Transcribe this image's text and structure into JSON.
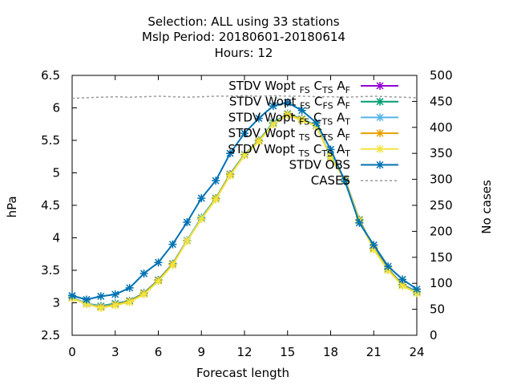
{
  "chart_data": {
    "type": "line",
    "title_lines": [
      "Selection: ALL using    33 stations",
      "Mslp   Period: 20180601-20180614",
      "Hours:  12"
    ],
    "xlabel": "Forecast length",
    "ylabel": "hPa",
    "y2label": "No cases",
    "xlim": [
      0,
      24
    ],
    "ylim": [
      2.5,
      6.5
    ],
    "y2lim": [
      0,
      500
    ],
    "xticks": [
      0,
      3,
      6,
      9,
      12,
      15,
      18,
      21,
      24
    ],
    "yticks": [
      2.5,
      3,
      3.5,
      4,
      4.5,
      5,
      5.5,
      6,
      6.5
    ],
    "y2ticks": [
      0,
      50,
      100,
      150,
      200,
      250,
      300,
      350,
      400,
      450,
      500
    ],
    "grid": false,
    "legend_position": "top-right",
    "x": [
      0,
      1,
      2,
      3,
      4,
      5,
      6,
      7,
      8,
      9,
      10,
      11,
      12,
      13,
      14,
      15,
      16,
      17,
      18,
      19,
      20,
      21,
      22,
      23,
      24
    ],
    "series": [
      {
        "name": "STDV Wopt_FS C_TS A_F",
        "color": "#9400d3",
        "axis": "y1",
        "values": [
          3.08,
          2.99,
          2.94,
          2.98,
          3.03,
          3.15,
          3.35,
          3.6,
          3.96,
          4.3,
          4.6,
          4.98,
          5.28,
          5.49,
          5.76,
          5.9,
          5.82,
          5.73,
          5.25,
          4.9,
          4.27,
          3.84,
          3.52,
          3.28,
          3.17
        ]
      },
      {
        "name": "STDV Wopt_FS C_FS A_F",
        "color": "#009e73",
        "axis": "y1",
        "values": [
          3.08,
          2.99,
          2.95,
          2.99,
          3.03,
          3.15,
          3.35,
          3.6,
          3.96,
          4.31,
          4.61,
          4.98,
          5.28,
          5.5,
          5.77,
          5.91,
          5.83,
          5.73,
          5.25,
          4.9,
          4.28,
          3.84,
          3.52,
          3.28,
          3.17
        ]
      },
      {
        "name": "STDV Wopt_FS C_TS A_T",
        "color": "#56b4e9",
        "axis": "y1",
        "values": [
          3.08,
          2.99,
          2.94,
          2.98,
          3.02,
          3.14,
          3.34,
          3.59,
          3.96,
          4.3,
          4.6,
          4.97,
          5.27,
          5.49,
          5.76,
          5.9,
          5.82,
          5.73,
          5.25,
          4.9,
          4.27,
          3.83,
          3.51,
          3.27,
          3.16
        ]
      },
      {
        "name": "STDV Wopt_TS C_TS A_F",
        "color": "#e69f00",
        "axis": "y1",
        "values": [
          3.07,
          2.98,
          2.93,
          2.97,
          3.02,
          3.14,
          3.34,
          3.59,
          3.95,
          4.29,
          4.6,
          4.97,
          5.27,
          5.49,
          5.75,
          5.9,
          5.82,
          5.72,
          5.24,
          4.89,
          4.27,
          3.83,
          3.51,
          3.27,
          3.15
        ]
      },
      {
        "name": "STDV Wopt_TS C_TS A_T",
        "color": "#f0e442",
        "axis": "y1",
        "values": [
          3.07,
          2.98,
          2.92,
          2.96,
          3.01,
          3.13,
          3.33,
          3.58,
          3.95,
          4.29,
          4.59,
          4.96,
          5.27,
          5.48,
          5.75,
          5.89,
          5.81,
          5.72,
          5.24,
          4.89,
          4.26,
          3.82,
          3.5,
          3.26,
          3.15
        ]
      },
      {
        "name": "STDV OBS",
        "color": "#0072b2",
        "axis": "y1",
        "values": [
          3.11,
          3.05,
          3.1,
          3.13,
          3.23,
          3.45,
          3.62,
          3.9,
          4.24,
          4.61,
          4.88,
          5.3,
          5.61,
          5.84,
          6.03,
          6.08,
          5.96,
          5.77,
          5.36,
          4.87,
          4.23,
          3.89,
          3.56,
          3.36,
          3.21
        ]
      },
      {
        "name": "CASES",
        "color": "#999999",
        "axis": "y2",
        "values": [
          456,
          457,
          458,
          459,
          458,
          459,
          460,
          459,
          458,
          459,
          460,
          460,
          461,
          460,
          461,
          460,
          460,
          459,
          459,
          458,
          459,
          460,
          459,
          458,
          457
        ]
      }
    ]
  }
}
